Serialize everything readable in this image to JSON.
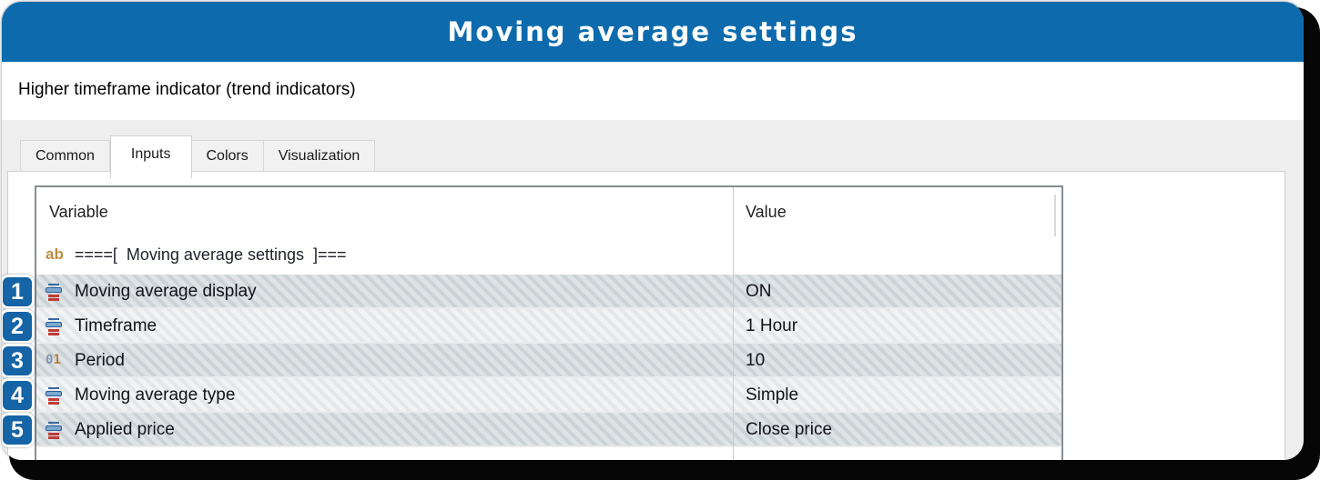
{
  "banner": {
    "title": "Moving average settings"
  },
  "window": {
    "title": "Higher timeframe indicator (trend indicators)",
    "controls": {
      "minimize": "minimize",
      "maximize": "maximize",
      "close": "close"
    }
  },
  "tabs": [
    {
      "label": "Common",
      "active": false
    },
    {
      "label": "Inputs",
      "active": true
    },
    {
      "label": "Colors",
      "active": false
    },
    {
      "label": "Visualization",
      "active": false
    }
  ],
  "table": {
    "columns": [
      "Variable",
      "Value"
    ],
    "group_row": {
      "prefix": "ab",
      "text": "====[  Moving average settings  ]==="
    },
    "rows": [
      {
        "num": "1",
        "icon": "enum-type",
        "variable": "Moving average display",
        "value": "ON",
        "shade": "dark"
      },
      {
        "num": "2",
        "icon": "enum-type",
        "variable": "Timeframe",
        "value": "1 Hour",
        "shade": "light"
      },
      {
        "num": "3",
        "icon": "integer-type",
        "variable": "Period",
        "value": "10",
        "shade": "dark"
      },
      {
        "num": "4",
        "icon": "enum-type",
        "variable": "Moving average type",
        "value": "Simple",
        "shade": "light"
      },
      {
        "num": "5",
        "icon": "enum-type",
        "variable": "Applied price",
        "value": "Close price",
        "shade": "dark"
      }
    ]
  },
  "icons": {
    "string_type_glyph": "ab",
    "integer_glyph_zero": "0",
    "integer_glyph_one": "1"
  },
  "colors": {
    "banner_blue": "#0d6bad",
    "badge_blue": "#1464a6",
    "frame_black": "#060606",
    "panel_gray": "#eeeeee",
    "table_border": "#868d94",
    "hatch_dark_a": "#ccd3d7",
    "hatch_dark_b": "#dee3e5",
    "hatch_light_a": "#e3e7e9",
    "hatch_light_b": "#f1f3f4"
  }
}
